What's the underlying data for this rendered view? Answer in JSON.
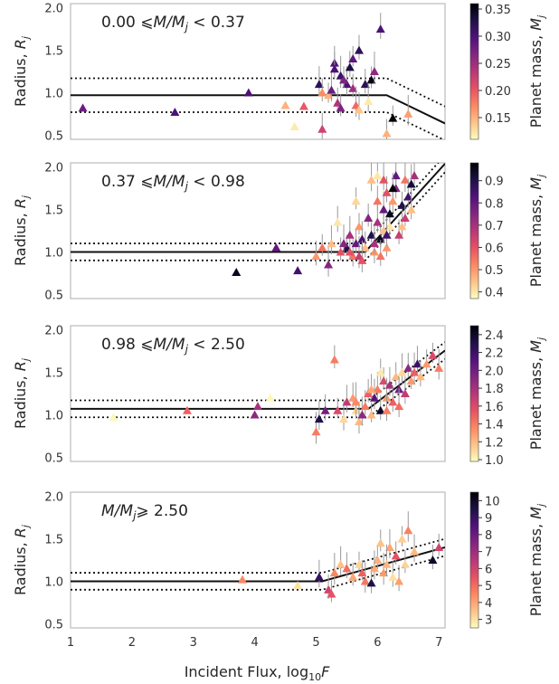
{
  "chart_data": {
    "type": "scatter",
    "shared_xlabel": "Incident Flux, log10F",
    "x_ticks": [
      1,
      2,
      3,
      4,
      5,
      6,
      7
    ],
    "xlim": [
      1,
      7.1
    ],
    "ylim": [
      0.45,
      2.05
    ],
    "y_ticks": [
      0.5,
      1.0,
      1.5,
      2.0
    ],
    "ylabel": "Radius, Rj",
    "colorbar_label": "Planet mass, Mj",
    "colormap": [
      "#fcfdbf",
      "#fec287",
      "#fb8761",
      "#e65164",
      "#b73779",
      "#822681",
      "#51127c",
      "#1d1147",
      "#000004"
    ],
    "grid": false,
    "panels": [
      {
        "label": "0.00 ⩽M/Mj < 0.37",
        "cbar_ticks": [
          0.15,
          0.2,
          0.25,
          0.3,
          0.35
        ],
        "cbar_range": [
          0.11,
          0.36
        ],
        "fit": {
          "flat_y": 0.97,
          "break_x": 6.15,
          "slope": -0.35,
          "band": 0.2
        },
        "points": [
          [
            1.2,
            0.82,
            0.28
          ],
          [
            2.7,
            0.77,
            0.3
          ],
          [
            3.9,
            1.0,
            0.3
          ],
          [
            4.5,
            0.85,
            0.15
          ],
          [
            4.65,
            0.6,
            0.12
          ],
          [
            4.8,
            0.84,
            0.2
          ],
          [
            5.05,
            1.1,
            0.32
          ],
          [
            5.1,
            0.57,
            0.22
          ],
          [
            5.1,
            1.0,
            0.17
          ],
          [
            5.2,
            0.97,
            0.15
          ],
          [
            5.25,
            1.03,
            0.28
          ],
          [
            5.3,
            1.35,
            0.3
          ],
          [
            5.35,
            0.88,
            0.24
          ],
          [
            5.4,
            0.82,
            0.27
          ],
          [
            5.4,
            1.2,
            0.31
          ],
          [
            5.5,
            1.1,
            0.3
          ],
          [
            5.55,
            1.3,
            0.33
          ],
          [
            5.6,
            1.05,
            0.25
          ],
          [
            5.6,
            1.4,
            0.29
          ],
          [
            5.65,
            0.85,
            0.19
          ],
          [
            5.7,
            0.8,
            0.14
          ],
          [
            5.8,
            1.1,
            0.32
          ],
          [
            5.9,
            1.15,
            0.35
          ],
          [
            5.95,
            1.25,
            0.26
          ],
          [
            5.85,
            0.9,
            0.12
          ],
          [
            6.05,
            1.75,
            0.3
          ],
          [
            6.15,
            0.52,
            0.15
          ],
          [
            6.25,
            0.7,
            0.36
          ],
          [
            6.5,
            0.75,
            0.16
          ],
          [
            5.3,
            1.28,
            0.3
          ],
          [
            5.7,
            1.5,
            0.32
          ],
          [
            5.45,
            1.15,
            0.27
          ]
        ]
      },
      {
        "label": "0.37 ⩽M/Mj < 0.98",
        "cbar_ticks": [
          0.4,
          0.5,
          0.6,
          0.7,
          0.8,
          0.9
        ],
        "cbar_range": [
          0.37,
          0.98
        ],
        "fit": {
          "flat_y": 1.0,
          "break_x": 5.8,
          "slope": 0.8,
          "band": 0.1
        },
        "points": [
          [
            3.7,
            0.76,
            0.95
          ],
          [
            4.35,
            1.05,
            0.8
          ],
          [
            4.7,
            0.78,
            0.85
          ],
          [
            5.0,
            0.95,
            0.5
          ],
          [
            5.1,
            1.05,
            0.55
          ],
          [
            5.2,
            0.85,
            0.75
          ],
          [
            5.25,
            1.1,
            0.45
          ],
          [
            5.35,
            1.35,
            0.4
          ],
          [
            5.4,
            1.0,
            0.6
          ],
          [
            5.5,
            1.05,
            0.9
          ],
          [
            5.55,
            1.2,
            0.7
          ],
          [
            5.6,
            0.95,
            0.55
          ],
          [
            5.65,
            1.1,
            0.8
          ],
          [
            5.7,
            1.3,
            0.5
          ],
          [
            5.7,
            0.95,
            0.65
          ],
          [
            5.75,
            1.15,
            0.85
          ],
          [
            5.8,
            1.05,
            0.45
          ],
          [
            5.85,
            1.4,
            0.75
          ],
          [
            5.9,
            1.2,
            0.9
          ],
          [
            5.95,
            1.0,
            0.5
          ],
          [
            6.0,
            1.35,
            0.7
          ],
          [
            6.0,
            1.6,
            0.55
          ],
          [
            6.05,
            1.15,
            0.95
          ],
          [
            6.1,
            1.25,
            0.45
          ],
          [
            6.1,
            1.5,
            0.8
          ],
          [
            6.15,
            1.7,
            0.6
          ],
          [
            6.2,
            1.3,
            0.4
          ],
          [
            6.2,
            1.45,
            0.95
          ],
          [
            6.25,
            1.6,
            0.5
          ],
          [
            6.3,
            1.75,
            0.75
          ],
          [
            6.35,
            1.2,
            0.65
          ],
          [
            6.4,
            1.55,
            0.9
          ],
          [
            6.45,
            1.85,
            0.55
          ],
          [
            6.5,
            1.65,
            0.85
          ],
          [
            6.55,
            1.5,
            0.45
          ],
          [
            6.6,
            1.9,
            0.7
          ],
          [
            6.0,
            1.9,
            0.4
          ],
          [
            5.9,
            1.85,
            0.45
          ],
          [
            6.1,
            1.85,
            0.6
          ],
          [
            6.3,
            1.9,
            0.8
          ],
          [
            5.65,
            1.6,
            0.42
          ],
          [
            5.75,
            0.9,
            0.6
          ],
          [
            5.95,
            1.1,
            0.7
          ],
          [
            6.05,
            0.95,
            0.55
          ],
          [
            6.15,
            1.05,
            0.5
          ],
          [
            5.55,
            1.0,
            0.6
          ],
          [
            5.45,
            1.1,
            0.75
          ],
          [
            6.4,
            1.3,
            0.45
          ],
          [
            6.25,
            1.75,
            0.98
          ],
          [
            6.45,
            1.4,
            0.65
          ],
          [
            6.55,
            1.8,
            0.92
          ],
          [
            6.15,
            1.2,
            0.85
          ]
        ]
      },
      {
        "label": "0.98 ⩽M/Mj < 2.50",
        "cbar_ticks": [
          1.0,
          1.2,
          1.4,
          1.6,
          1.8,
          2.0,
          2.2,
          2.4
        ],
        "cbar_range": [
          0.98,
          2.5
        ],
        "fit": {
          "flat_y": 1.07,
          "break_x": 5.85,
          "slope": 0.55,
          "band": 0.1
        },
        "points": [
          [
            1.7,
            0.97,
            1.0
          ],
          [
            2.9,
            1.05,
            1.5
          ],
          [
            4.0,
            1.0,
            1.9
          ],
          [
            4.05,
            1.1,
            1.8
          ],
          [
            4.25,
            1.2,
            1.0
          ],
          [
            5.0,
            0.8,
            1.4
          ],
          [
            5.05,
            0.95,
            2.3
          ],
          [
            5.15,
            1.05,
            2.0
          ],
          [
            5.3,
            1.65,
            1.4
          ],
          [
            5.35,
            1.05,
            1.6
          ],
          [
            5.45,
            0.95,
            1.1
          ],
          [
            5.5,
            1.15,
            1.7
          ],
          [
            5.6,
            1.2,
            1.3
          ],
          [
            5.65,
            1.05,
            1.1
          ],
          [
            5.7,
            0.92,
            1.2
          ],
          [
            5.75,
            1.0,
            1.9
          ],
          [
            5.8,
            1.1,
            1.4
          ],
          [
            5.85,
            1.25,
            1.5
          ],
          [
            5.9,
            1.0,
            1.2
          ],
          [
            5.95,
            1.2,
            2.1
          ],
          [
            6.0,
            1.3,
            1.4
          ],
          [
            6.05,
            1.05,
            2.4
          ],
          [
            6.1,
            1.4,
            1.6
          ],
          [
            6.15,
            1.2,
            1.3
          ],
          [
            6.2,
            1.35,
            1.8
          ],
          [
            6.25,
            1.15,
            1.5
          ],
          [
            6.3,
            1.45,
            1.2
          ],
          [
            6.35,
            1.3,
            2.0
          ],
          [
            6.4,
            1.5,
            1.1
          ],
          [
            6.45,
            1.25,
            1.7
          ],
          [
            6.5,
            1.55,
            1.9
          ],
          [
            6.55,
            1.4,
            1.3
          ],
          [
            6.6,
            1.5,
            1.5
          ],
          [
            6.65,
            1.6,
            2.2
          ],
          [
            6.7,
            1.45,
            1.2
          ],
          [
            6.8,
            1.6,
            1.3
          ],
          [
            6.9,
            1.7,
            1.6
          ],
          [
            7.0,
            1.55,
            1.4
          ],
          [
            6.15,
            1.05,
            1.4
          ],
          [
            5.9,
            1.3,
            1.25
          ],
          [
            6.05,
            1.5,
            1.05
          ],
          [
            5.65,
            1.15,
            1.35
          ],
          [
            6.35,
            1.1,
            1.45
          ]
        ]
      },
      {
        "label": "M/Mj⩾ 2.50",
        "cbar_ticks": [
          3,
          4,
          5,
          6,
          7,
          8,
          9,
          10
        ],
        "cbar_range": [
          2.5,
          10.5
        ],
        "fit": {
          "flat_y": 1.0,
          "break_x": 5.1,
          "slope": 0.2,
          "band": 0.1
        },
        "points": [
          [
            3.8,
            1.02,
            4.5
          ],
          [
            4.7,
            0.95,
            3.0
          ],
          [
            5.05,
            1.05,
            9.0
          ],
          [
            5.2,
            0.9,
            6.0
          ],
          [
            5.25,
            0.85,
            5.5
          ],
          [
            5.3,
            1.1,
            4.5
          ],
          [
            5.4,
            1.2,
            3.5
          ],
          [
            5.5,
            1.15,
            5.0
          ],
          [
            5.6,
            1.05,
            4.0
          ],
          [
            5.7,
            1.2,
            3.2
          ],
          [
            5.8,
            1.0,
            4.8
          ],
          [
            5.9,
            0.98,
            9.5
          ],
          [
            6.0,
            1.25,
            3.8
          ],
          [
            6.05,
            1.45,
            3.5
          ],
          [
            6.1,
            1.1,
            4.2
          ],
          [
            6.2,
            1.4,
            4.0
          ],
          [
            6.25,
            1.05,
            3.0
          ],
          [
            6.3,
            1.3,
            5.5
          ],
          [
            6.4,
            1.5,
            3.3
          ],
          [
            6.5,
            1.6,
            4.6
          ],
          [
            6.6,
            1.35,
            3.6
          ],
          [
            6.9,
            1.25,
            10.0
          ],
          [
            7.0,
            1.4,
            6.0
          ],
          [
            6.15,
            1.2,
            3.7
          ],
          [
            5.95,
            1.15,
            3.9
          ],
          [
            6.35,
            1.0,
            4.1
          ],
          [
            6.45,
            1.2,
            3.2
          ],
          [
            5.75,
            1.1,
            5.2
          ]
        ]
      }
    ]
  }
}
